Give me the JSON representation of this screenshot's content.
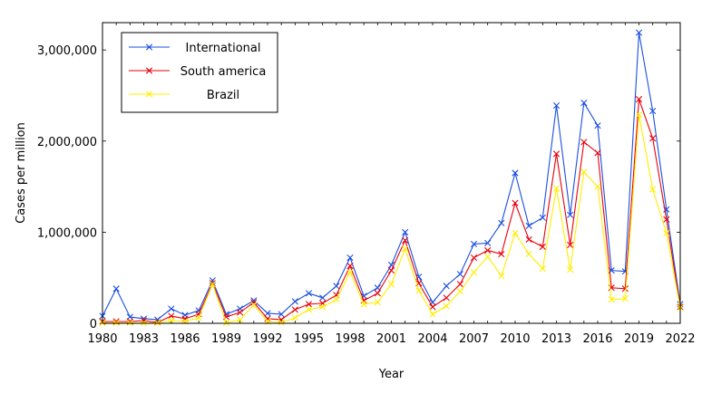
{
  "chart_data": {
    "type": "line",
    "title": "",
    "xlabel": "Year",
    "ylabel": "Cases per million",
    "xlim": [
      1980,
      2022
    ],
    "ylim": [
      0,
      3300000
    ],
    "x_ticks": [
      1980,
      1983,
      1986,
      1989,
      1992,
      1995,
      1998,
      2001,
      2004,
      2007,
      2010,
      2013,
      2016,
      2019,
      2022
    ],
    "x_tick_labels": [
      "1980",
      "1983",
      "1986",
      "1989",
      "1992",
      "1995",
      "1998",
      "2001",
      "2004",
      "2007",
      "2010",
      "2013",
      "2016",
      "2019",
      "2022"
    ],
    "y_ticks": [
      0,
      1000000,
      2000000,
      3000000
    ],
    "y_tick_labels": [
      "0",
      "1,000,000",
      "2,000,000",
      "3,000,000"
    ],
    "legend_position": "top-left",
    "x": [
      1980,
      1981,
      1982,
      1983,
      1984,
      1985,
      1986,
      1987,
      1988,
      1989,
      1990,
      1991,
      1992,
      1993,
      1994,
      1995,
      1996,
      1997,
      1998,
      1999,
      2000,
      2001,
      2002,
      2003,
      2004,
      2005,
      2006,
      2007,
      2008,
      2009,
      2010,
      2011,
      2012,
      2013,
      2014,
      2015,
      2016,
      2017,
      2018,
      2019,
      2020,
      2021,
      2022
    ],
    "series": [
      {
        "name": "International",
        "color": "#1a4fe0",
        "marker": "x",
        "values": [
          80000,
          380000,
          70000,
          50000,
          40000,
          160000,
          90000,
          140000,
          470000,
          100000,
          160000,
          250000,
          110000,
          100000,
          240000,
          330000,
          280000,
          410000,
          720000,
          300000,
          390000,
          640000,
          1000000,
          510000,
          230000,
          410000,
          540000,
          870000,
          880000,
          1100000,
          1650000,
          1070000,
          1160000,
          2390000,
          1190000,
          2420000,
          2170000,
          580000,
          570000,
          3190000,
          2330000,
          1250000,
          210000
        ]
      },
      {
        "name": "South america",
        "color": "#e8000b",
        "marker": "x",
        "values": [
          20000,
          20000,
          20000,
          30000,
          10000,
          80000,
          50000,
          100000,
          440000,
          70000,
          120000,
          230000,
          50000,
          40000,
          150000,
          210000,
          220000,
          310000,
          630000,
          250000,
          330000,
          580000,
          910000,
          440000,
          180000,
          280000,
          430000,
          720000,
          800000,
          760000,
          1320000,
          920000,
          840000,
          1860000,
          860000,
          1990000,
          1870000,
          390000,
          380000,
          2460000,
          2030000,
          1140000,
          180000
        ]
      },
      {
        "name": "Brazil",
        "color": "#ffee00",
        "marker": "x",
        "values": [
          5000,
          5000,
          5000,
          5000,
          5000,
          30000,
          20000,
          60000,
          430000,
          5000,
          40000,
          200000,
          20000,
          10000,
          60000,
          150000,
          180000,
          260000,
          560000,
          210000,
          230000,
          430000,
          820000,
          360000,
          100000,
          190000,
          350000,
          560000,
          730000,
          520000,
          990000,
          760000,
          600000,
          1480000,
          590000,
          1660000,
          1500000,
          260000,
          270000,
          2290000,
          1470000,
          990000,
          170000
        ]
      }
    ]
  }
}
